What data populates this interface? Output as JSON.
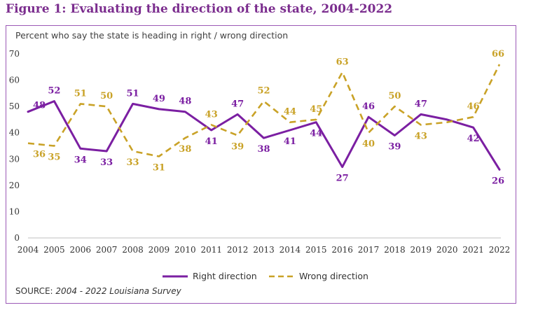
{
  "figure_title": "Figure 1: Evaluating the direction of the state, 2004-2022",
  "source": {
    "label": "SOURCE:",
    "text": "2004 - 2022 Louisiana Survey"
  },
  "colors": {
    "right": "#7B1FA2",
    "wrong": "#C9A227",
    "frame": "#9B59B6",
    "title": "#7B2D8E"
  },
  "chart_data": {
    "type": "line",
    "title": "Figure 1: Evaluating the direction of the state, 2004-2022",
    "subtitle": "Percent who say the state is heading in right / wrong direction",
    "xlabel": "",
    "ylabel": "",
    "ylim": [
      0,
      70
    ],
    "yticks": [
      0,
      10,
      20,
      30,
      40,
      50,
      60,
      70
    ],
    "grid": false,
    "legend_position": "bottom",
    "x": [
      2004,
      2005,
      2006,
      2007,
      2008,
      2009,
      2010,
      2011,
      2012,
      2013,
      2014,
      2015,
      2016,
      2017,
      2018,
      2019,
      2020,
      2021,
      2022
    ],
    "series": [
      {
        "name": "Right direction",
        "style": "solid",
        "values": [
          48,
          52,
          34,
          33,
          51,
          49,
          48,
          41,
          47,
          38,
          41,
          44,
          27,
          46,
          39,
          47,
          45,
          42,
          26
        ],
        "labels": [
          "48",
          "52",
          "34",
          "33",
          "51",
          "49",
          "48",
          "41",
          "47",
          "38",
          "41",
          "44",
          "27",
          "46",
          "39",
          "47",
          null,
          "42",
          "26"
        ]
      },
      {
        "name": "Wrong direction",
        "style": "dashed",
        "values": [
          36,
          35,
          51,
          50,
          33,
          31,
          38,
          43,
          39,
          52,
          44,
          45,
          63,
          40,
          50,
          43,
          44,
          46,
          66
        ],
        "labels": [
          "36",
          "35",
          "51",
          "50",
          "33",
          "31",
          "38",
          "43",
          "39",
          "52",
          "44",
          "45",
          "63",
          "40",
          "50",
          "43",
          null,
          "46",
          "66"
        ]
      }
    ]
  }
}
